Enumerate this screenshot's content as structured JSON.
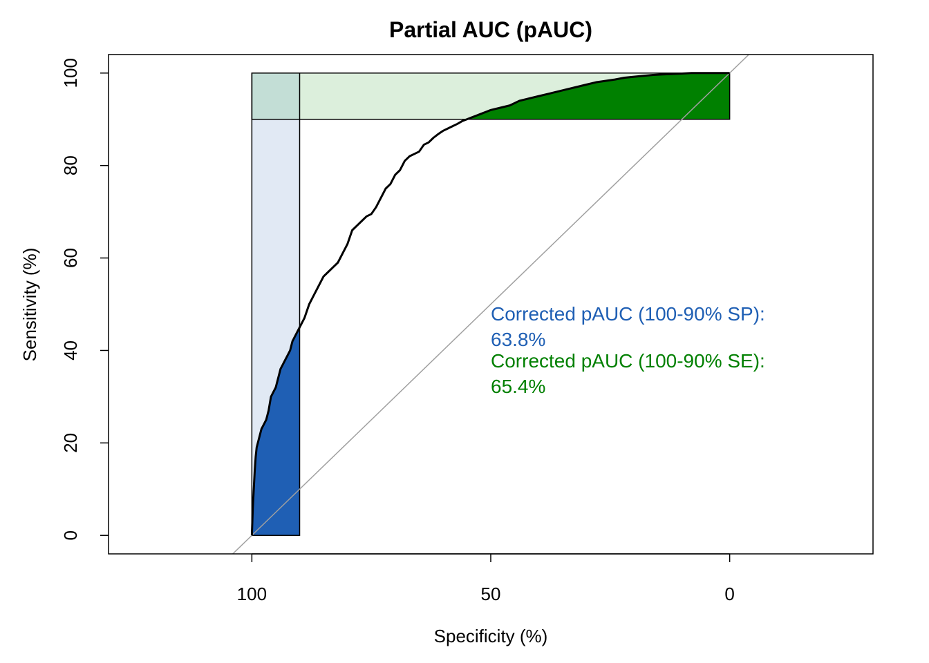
{
  "chart_data": {
    "type": "line",
    "title": "Partial AUC (pAUC)",
    "xlabel": "Specificity (%)",
    "ylabel": "Sensitivity (%)",
    "xlim": [
      130,
      -30
    ],
    "ylim": [
      -4,
      104
    ],
    "x_reversed": true,
    "x_ticks": [
      100,
      50,
      0
    ],
    "x_tick_labels": [
      "100",
      "50",
      "0"
    ],
    "y_ticks": [
      0,
      20,
      40,
      60,
      80,
      100
    ],
    "y_tick_labels": [
      "0",
      "20",
      "40",
      "60",
      "80",
      "100"
    ],
    "grid": false,
    "reference_line": {
      "from": [
        100,
        0
      ],
      "to": [
        0,
        100
      ],
      "color": "#a0a0a0"
    },
    "partial_regions": [
      {
        "kind": "specificity",
        "range": [
          100,
          90
        ],
        "fill": "#1f5fb4",
        "box_fill": "#e1e9f4"
      },
      {
        "kind": "sensitivity",
        "range": [
          90,
          100
        ],
        "fill": "#008000",
        "box_fill": "#dcefdc"
      }
    ],
    "series": [
      {
        "color": "#000000",
        "x": [
          100,
          99.8,
          99.6,
          99.4,
          99.2,
          99.0,
          98.5,
          98.0,
          97.5,
          97.0,
          96.5,
          96.0,
          95.5,
          95.0,
          94.5,
          94.0,
          93.5,
          93.0,
          92.5,
          92.0,
          91.5,
          91.0,
          90.0,
          89.0,
          88.0,
          87.0,
          86.0,
          85.0,
          84.0,
          83.0,
          82.0,
          81.0,
          80.0,
          79.0,
          78.0,
          77.0,
          76.0,
          75.0,
          74.0,
          73.0,
          72.0,
          71.0,
          70.0,
          69.0,
          68.0,
          67.0,
          66.0,
          65.0,
          64.0,
          63.0,
          62.0,
          61.0,
          60.0,
          59.0,
          58.0,
          57.0,
          56.0,
          55.0,
          54.0,
          53.0,
          52.0,
          51.0,
          50.0,
          48.0,
          46.0,
          44.0,
          42.0,
          40.0,
          38.0,
          36.0,
          34.0,
          32.0,
          30.0,
          28.0,
          26.0,
          24.0,
          22.0,
          20.0,
          18.0,
          16.0,
          14.0,
          12.0,
          10.0,
          8.0,
          6.0,
          4.0,
          2.0,
          0.0
        ],
        "y": [
          0,
          6,
          10,
          14,
          17,
          19,
          21,
          23,
          24,
          25,
          27,
          30,
          31,
          32,
          34,
          36,
          37,
          38,
          39,
          40,
          42,
          43,
          45,
          47,
          50,
          52,
          54,
          56,
          57,
          58,
          59,
          61,
          63,
          66,
          67,
          68,
          69,
          69.5,
          71,
          73,
          75,
          76,
          78,
          79,
          81,
          82,
          82.5,
          83,
          84.5,
          85,
          86,
          86.8,
          87.5,
          88,
          88.5,
          89,
          89.6,
          90,
          90.4,
          90.8,
          91.2,
          91.6,
          92,
          92.5,
          93,
          94,
          94.5,
          95,
          95.5,
          96,
          96.5,
          97,
          97.5,
          98,
          98.3,
          98.6,
          99,
          99.2,
          99.4,
          99.6,
          99.7,
          99.8,
          99.9,
          100,
          100,
          100,
          100,
          100
        ]
      }
    ],
    "annotations": [
      {
        "label": "Corrected pAUC (100-90% SP):",
        "value": "63.8%",
        "color": "#1f5fb4"
      },
      {
        "label": "Corrected pAUC (100-90% SE):",
        "value": "65.4%",
        "color": "#008000"
      }
    ]
  }
}
